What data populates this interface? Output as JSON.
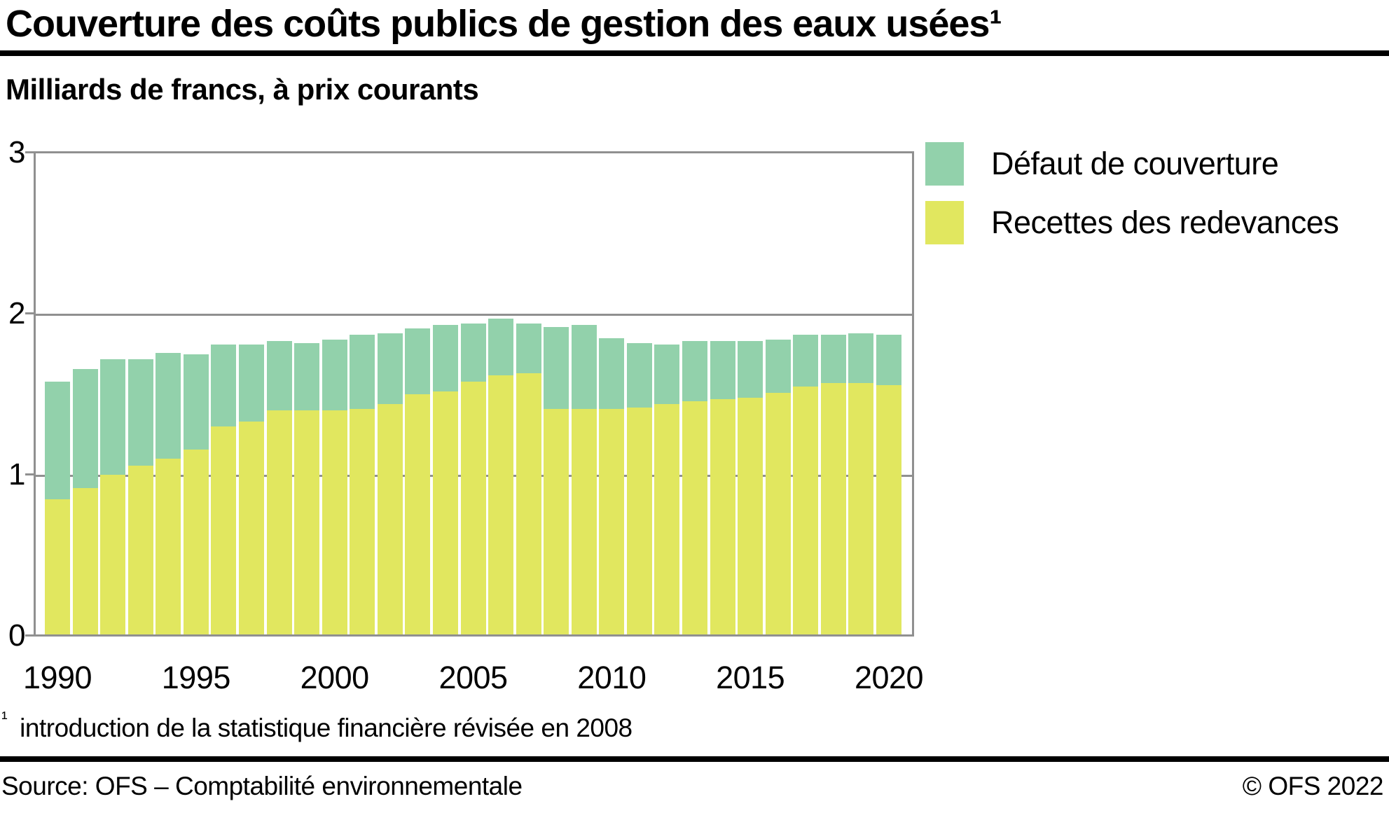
{
  "page": {
    "title": "Couverture des coûts publics de gestion des eaux usées¹",
    "subtitle": "Milliards de francs, à prix courants",
    "footnote_marker": "¹",
    "footnote_text": "introduction de la statistique financière révisée en 2008",
    "source": "Source: OFS – Comptabilité environnementale",
    "copyright": "© OFS 2022"
  },
  "colors": {
    "defaut_green": "#92d1ab",
    "recettes_yellow": "#e1e75f",
    "axis_gray": "#909090",
    "rule_black": "#000000"
  },
  "legend": {
    "items": [
      {
        "label": "Défaut de couverture",
        "color": "#92d1ab",
        "series_key": "defaut"
      },
      {
        "label": "Recettes des redevances",
        "color": "#e1e75f",
        "series_key": "recettes"
      }
    ]
  },
  "chart_data": {
    "type": "bar",
    "stacked": true,
    "title": "Couverture des coûts publics de gestion des eaux usées",
    "ylabel": "Milliards de francs, à prix courants",
    "ylim": [
      0,
      3
    ],
    "yticks": [
      "0",
      "1",
      "2",
      "3"
    ],
    "ytick_values": [
      0,
      1,
      2,
      3
    ],
    "grid": "horizontal",
    "legend_position": "right-top",
    "categories": [
      1990,
      1991,
      1992,
      1993,
      1994,
      1995,
      1996,
      1997,
      1998,
      1999,
      2000,
      2001,
      2002,
      2003,
      2004,
      2005,
      2006,
      2007,
      2008,
      2009,
      2010,
      2011,
      2012,
      2013,
      2014,
      2015,
      2016,
      2017,
      2018,
      2019,
      2020
    ],
    "xticks": [
      {
        "label": "1990",
        "index": 0
      },
      {
        "label": "1995",
        "index": 5
      },
      {
        "label": "2000",
        "index": 10
      },
      {
        "label": "2005",
        "index": 15
      },
      {
        "label": "2010",
        "index": 20
      },
      {
        "label": "2015",
        "index": 25
      },
      {
        "label": "2020",
        "index": 30
      }
    ],
    "series": [
      {
        "name": "Recettes des redevances",
        "color": "#e1e75f",
        "values": [
          0.84,
          0.91,
          0.99,
          1.05,
          1.09,
          1.15,
          1.29,
          1.32,
          1.39,
          1.39,
          1.39,
          1.4,
          1.43,
          1.49,
          1.51,
          1.57,
          1.61,
          1.62,
          1.4,
          1.4,
          1.4,
          1.41,
          1.43,
          1.45,
          1.46,
          1.47,
          1.5,
          1.54,
          1.56,
          1.56,
          1.55
        ]
      },
      {
        "name": "Défaut de couverture",
        "color": "#92d1ab",
        "values": [
          0.73,
          0.74,
          0.72,
          0.66,
          0.66,
          0.59,
          0.51,
          0.48,
          0.43,
          0.42,
          0.44,
          0.46,
          0.44,
          0.41,
          0.41,
          0.36,
          0.35,
          0.31,
          0.51,
          0.52,
          0.44,
          0.4,
          0.37,
          0.37,
          0.36,
          0.35,
          0.33,
          0.32,
          0.3,
          0.31,
          0.31
        ]
      }
    ],
    "totals": [
      1.57,
      1.65,
      1.71,
      1.71,
      1.75,
      1.74,
      1.8,
      1.8,
      1.82,
      1.81,
      1.83,
      1.86,
      1.87,
      1.9,
      1.92,
      1.93,
      1.96,
      1.93,
      1.91,
      1.92,
      1.84,
      1.81,
      1.8,
      1.82,
      1.82,
      1.82,
      1.83,
      1.86,
      1.86,
      1.87,
      1.86
    ]
  }
}
